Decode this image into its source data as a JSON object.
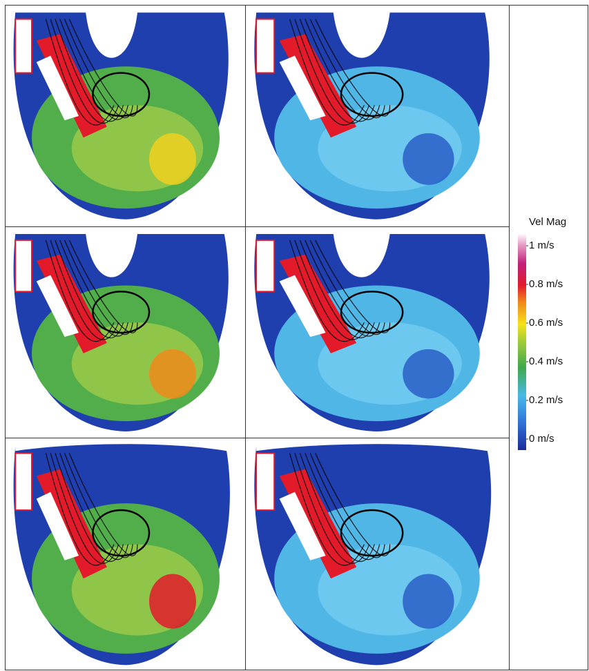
{
  "colorbar": {
    "title": "Vel Mag",
    "lim": [
      0,
      1
    ],
    "ticks": [
      {
        "value": 1,
        "label": "1 m/s"
      },
      {
        "value": 0.8,
        "label": "0.8 m/s"
      },
      {
        "value": 0.6,
        "label": "0.6 m/s"
      },
      {
        "value": 0.4,
        "label": "0.4 m/s"
      },
      {
        "value": 0.2,
        "label": "0.2 m/s"
      },
      {
        "value": 0,
        "label": "0 m/s"
      }
    ]
  }
}
